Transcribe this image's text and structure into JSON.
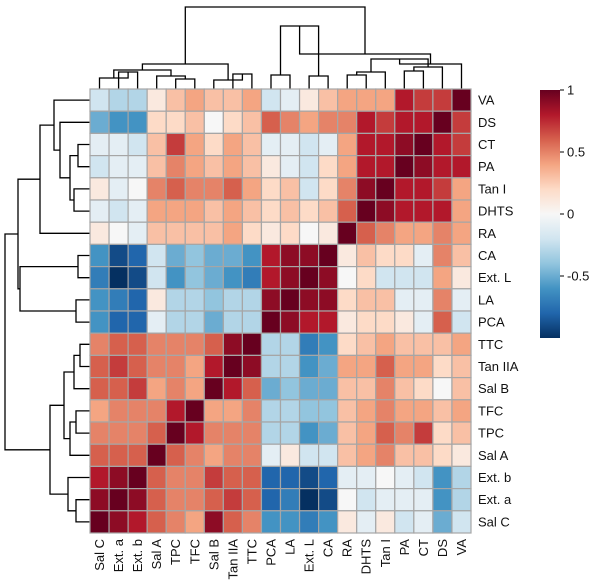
{
  "chart_data": {
    "type": "heatmap",
    "title": "",
    "xlabel": "",
    "ylabel": "",
    "columns": [
      "Sal C",
      "Ext. a",
      "Ext. b",
      "Sal A",
      "TPC",
      "TFC",
      "Sal B",
      "Tan IIA",
      "TTC",
      "PCA",
      "LA",
      "Ext. L",
      "CA",
      "RA",
      "DHTS",
      "Tan I",
      "PA",
      "CT",
      "DS",
      "VA"
    ],
    "rows": [
      "VA",
      "DS",
      "CT",
      "PA",
      "Tan I",
      "DHTS",
      "RA",
      "CA",
      "Ext. L",
      "LA",
      "PCA",
      "TTC",
      "Tan IIA",
      "Sal B",
      "TFC",
      "TPC",
      "Sal A",
      "Ext. b",
      "Ext. a",
      "Sal C"
    ],
    "values": [
      [
        -0.2,
        -0.3,
        -0.3,
        0.1,
        0.3,
        0.4,
        0.3,
        0.3,
        0.4,
        -0.2,
        -0.1,
        0.1,
        0.3,
        0.4,
        0.4,
        0.4,
        0.8,
        0.7,
        0.7,
        1.0
      ],
      [
        -0.5,
        -0.6,
        -0.6,
        0.2,
        0.2,
        0.3,
        0.0,
        0.2,
        0.3,
        0.6,
        0.5,
        0.4,
        0.5,
        0.5,
        0.8,
        0.7,
        0.8,
        0.8,
        1.0,
        0.7
      ],
      [
        -0.1,
        -0.1,
        -0.2,
        0.3,
        0.7,
        0.4,
        0.2,
        0.4,
        0.3,
        -0.1,
        -0.1,
        -0.2,
        -0.1,
        0.4,
        0.8,
        0.8,
        0.9,
        1.0,
        0.8,
        0.7
      ],
      [
        -0.2,
        -0.1,
        -0.1,
        0.3,
        0.5,
        0.4,
        0.3,
        0.4,
        0.3,
        0.1,
        -0.1,
        -0.2,
        0.2,
        0.4,
        0.8,
        0.8,
        1.0,
        0.9,
        0.8,
        0.8
      ],
      [
        0.1,
        -0.1,
        0.0,
        0.5,
        0.6,
        0.5,
        0.5,
        0.6,
        0.4,
        0.2,
        0.3,
        -0.2,
        0.2,
        0.5,
        0.9,
        1.0,
        0.8,
        0.8,
        0.7,
        0.4
      ],
      [
        -0.1,
        -0.2,
        -0.1,
        0.4,
        0.4,
        0.4,
        0.3,
        0.4,
        0.3,
        0.2,
        0.3,
        0.2,
        0.3,
        0.6,
        1.0,
        0.9,
        0.8,
        0.8,
        0.8,
        0.4
      ],
      [
        0.1,
        0.0,
        -0.1,
        0.3,
        0.3,
        0.3,
        0.3,
        0.4,
        0.2,
        0.1,
        0.2,
        0.0,
        0.1,
        1.0,
        0.6,
        0.5,
        0.4,
        0.4,
        0.5,
        0.4
      ],
      [
        -0.6,
        -0.9,
        -0.8,
        -0.2,
        -0.5,
        -0.4,
        -0.5,
        -0.5,
        -0.6,
        0.8,
        0.9,
        0.9,
        1.0,
        0.1,
        0.3,
        0.2,
        0.2,
        -0.1,
        0.5,
        0.3
      ],
      [
        -0.7,
        -1.0,
        -0.9,
        -0.2,
        -0.6,
        -0.4,
        -0.5,
        -0.6,
        -0.7,
        0.8,
        0.9,
        1.0,
        0.9,
        0.0,
        0.2,
        -0.2,
        -0.2,
        -0.2,
        0.4,
        0.1
      ],
      [
        -0.6,
        -0.7,
        -0.8,
        0.1,
        -0.3,
        -0.3,
        -0.4,
        -0.3,
        -0.3,
        0.9,
        1.0,
        0.9,
        0.9,
        0.2,
        0.3,
        0.3,
        -0.1,
        -0.1,
        0.5,
        -0.1
      ],
      [
        -0.6,
        -0.8,
        -0.8,
        -0.1,
        -0.3,
        -0.3,
        -0.5,
        -0.3,
        -0.3,
        1.0,
        0.9,
        0.8,
        0.8,
        0.1,
        0.2,
        0.2,
        0.1,
        -0.1,
        0.6,
        -0.2
      ],
      [
        0.5,
        0.6,
        0.6,
        0.5,
        0.5,
        0.5,
        0.6,
        0.9,
        1.0,
        -0.3,
        -0.3,
        -0.7,
        -0.6,
        0.2,
        0.3,
        0.4,
        0.3,
        0.3,
        0.3,
        0.4
      ],
      [
        0.6,
        0.7,
        0.6,
        0.5,
        0.5,
        0.4,
        0.8,
        1.0,
        0.9,
        -0.3,
        -0.3,
        -0.6,
        -0.5,
        0.4,
        0.4,
        0.6,
        0.4,
        0.4,
        0.2,
        0.3
      ],
      [
        0.6,
        0.6,
        0.7,
        0.4,
        0.5,
        0.4,
        1.0,
        0.8,
        0.6,
        -0.5,
        -0.4,
        -0.5,
        -0.5,
        0.3,
        0.3,
        0.5,
        0.3,
        0.2,
        0.0,
        0.3
      ],
      [
        0.4,
        0.5,
        0.5,
        0.5,
        0.8,
        1.0,
        0.4,
        0.4,
        0.5,
        -0.3,
        -0.3,
        -0.4,
        -0.4,
        0.3,
        0.4,
        0.5,
        0.4,
        0.4,
        0.3,
        0.4
      ],
      [
        0.5,
        0.5,
        0.5,
        0.6,
        1.0,
        0.8,
        0.5,
        0.5,
        0.5,
        -0.3,
        -0.3,
        -0.6,
        -0.5,
        0.3,
        0.4,
        0.6,
        0.5,
        0.7,
        0.2,
        0.3
      ],
      [
        0.6,
        0.6,
        0.6,
        1.0,
        0.6,
        0.5,
        0.4,
        0.5,
        0.5,
        -0.1,
        0.1,
        -0.2,
        -0.2,
        0.3,
        0.4,
        0.5,
        0.3,
        0.3,
        0.2,
        0.1
      ],
      [
        0.8,
        0.9,
        1.0,
        0.6,
        0.5,
        0.5,
        0.7,
        0.6,
        0.6,
        -0.8,
        -0.8,
        -0.9,
        -0.8,
        -0.1,
        -0.1,
        0.0,
        -0.1,
        -0.2,
        -0.6,
        -0.3
      ],
      [
        0.9,
        1.0,
        0.9,
        0.6,
        0.5,
        0.5,
        0.6,
        0.7,
        0.6,
        -0.8,
        -0.7,
        -1.0,
        -0.9,
        0.0,
        -0.2,
        -0.1,
        -0.1,
        -0.1,
        -0.6,
        -0.3
      ],
      [
        1.0,
        0.9,
        0.8,
        0.6,
        0.5,
        0.4,
        0.9,
        0.6,
        0.5,
        -0.6,
        -0.6,
        -0.7,
        -0.6,
        0.1,
        -0.1,
        0.1,
        -0.2,
        -0.1,
        -0.5,
        -0.2
      ]
    ],
    "value_range": [
      -1,
      1
    ],
    "colorbar": {
      "ticks": [
        1,
        0.5,
        0,
        -0.5
      ],
      "tick_labels": [
        "1",
        "0.5",
        "0",
        "-0.5"
      ],
      "colors": [
        "#053061",
        "#2166ac",
        "#4393c3",
        "#92c5de",
        "#d1e5f0",
        "#f7f7f7",
        "#fddbc7",
        "#f4a582",
        "#d6604d",
        "#b2182b",
        "#67001f"
      ],
      "position": "top-right"
    },
    "grid": true,
    "grid_color": "#a6a6a6",
    "dendrograms": [
      "top",
      "left"
    ]
  }
}
